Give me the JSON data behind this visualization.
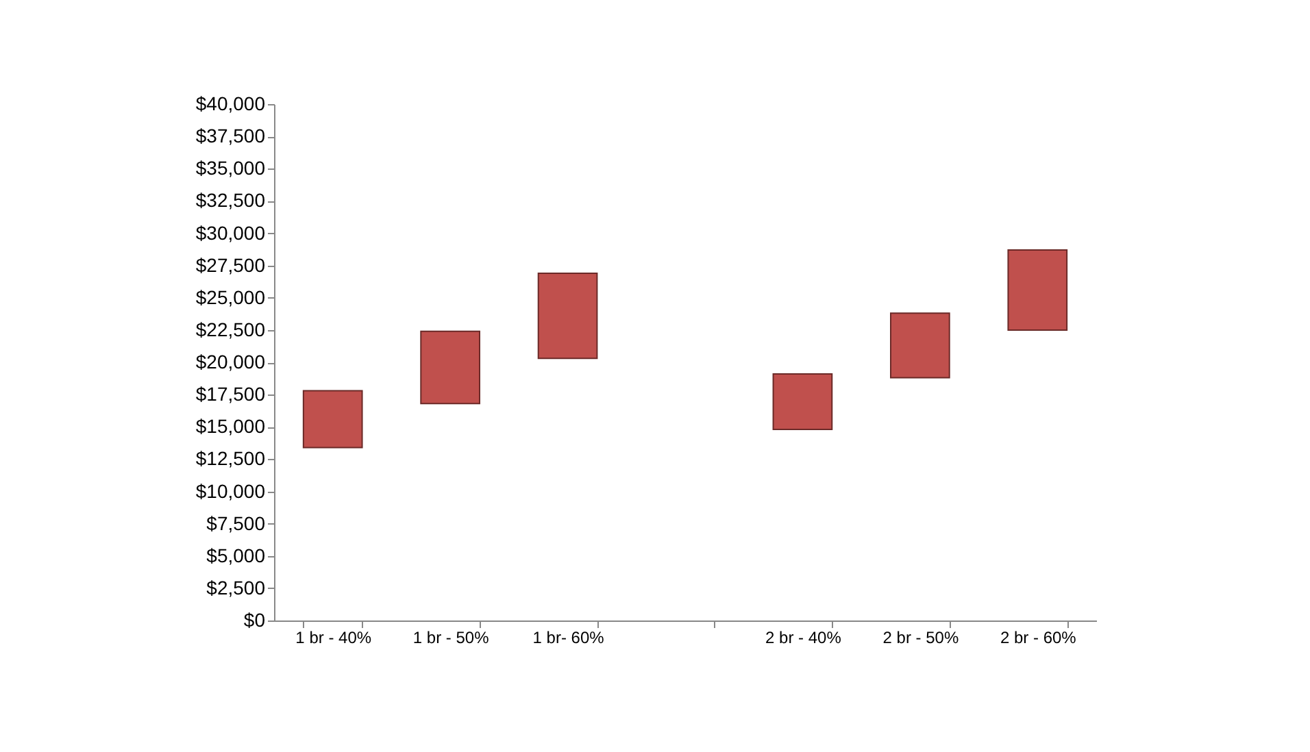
{
  "chart_data": {
    "type": "bar",
    "categories": [
      "1 br - 40%",
      "1 br - 50%",
      "1 br- 60%",
      null,
      "2 br - 40%",
      "2 br - 50%",
      "2 br - 60%"
    ],
    "base": [
      13400,
      16800,
      20300,
      null,
      14800,
      18800,
      22500
    ],
    "values": [
      4400,
      5600,
      6600,
      null,
      4300,
      5000,
      6200
    ],
    "color": "#c0504d",
    "ylim": [
      0,
      40000
    ],
    "yticks": [
      {
        "value": 0,
        "label": "$0"
      },
      {
        "value": 2500,
        "label": "$2,500"
      },
      {
        "value": 5000,
        "label": "$5,000"
      },
      {
        "value": 7500,
        "label": "$7,500"
      },
      {
        "value": 10000,
        "label": "$10,000"
      },
      {
        "value": 12500,
        "label": "$12,500"
      },
      {
        "value": 15000,
        "label": "$15,000"
      },
      {
        "value": 17500,
        "label": "$17,500"
      },
      {
        "value": 20000,
        "label": "$20,000"
      },
      {
        "value": 22500,
        "label": "$22,500"
      },
      {
        "value": 25000,
        "label": "$25,000"
      },
      {
        "value": 27500,
        "label": "$27,500"
      },
      {
        "value": 30000,
        "label": "$30,000"
      },
      {
        "value": 32500,
        "label": "$32,500"
      },
      {
        "value": 35000,
        "label": "$35,000"
      },
      {
        "value": 37500,
        "label": "$37,500"
      },
      {
        "value": 40000,
        "label": "$40,000"
      }
    ],
    "grid": false
  }
}
